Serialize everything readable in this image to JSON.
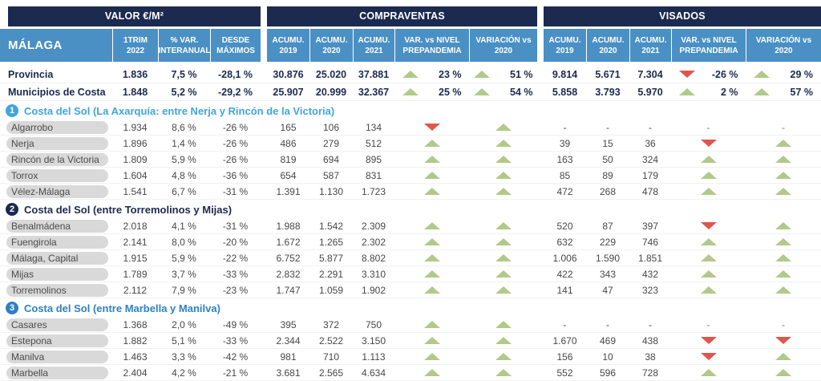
{
  "chart_data": {
    "type": "table",
    "corner_label": "MÁLAGA",
    "groups": [
      {
        "title": "VALOR €/M²",
        "columns": [
          "1TRIM 2022",
          "% VAR. INTERANUAL",
          "DESDE MÁXIMOS"
        ]
      },
      {
        "title": "COMPRAVENTAS",
        "columns": [
          "ACUMU. 2019",
          "ACUMU. 2020",
          "ACUMU. 2021",
          "VAR. vs NIVEL PREPANDEMIA",
          "VARIACIÓN vs 2020"
        ]
      },
      {
        "title": "VISADOS",
        "columns": [
          "ACUMU. 2019",
          "ACUMU. 2020",
          "ACUMU. 2021",
          "VAR. vs NIVEL PREPANDEMIA",
          "VARIACIÓN vs 2020"
        ]
      }
    ],
    "summary_rows": [
      {
        "name": "Provincia",
        "valor": [
          "1.836",
          "7,5 %",
          "-28,1 %"
        ],
        "compraventas": [
          "30.876",
          "25.020",
          "37.881"
        ],
        "cv_trends": [
          {
            "dir": "up",
            "label": "23 %"
          },
          {
            "dir": "up",
            "label": "51 %"
          }
        ],
        "visados": [
          "9.814",
          "5.671",
          "7.304"
        ],
        "vs_trends": [
          {
            "dir": "down",
            "label": "-26 %"
          },
          {
            "dir": "up",
            "label": "29 %"
          }
        ]
      },
      {
        "name": "Municipios de Costa",
        "valor": [
          "1.848",
          "5,2 %",
          "-29,2 %"
        ],
        "compraventas": [
          "25.907",
          "20.999",
          "32.367"
        ],
        "cv_trends": [
          {
            "dir": "up",
            "label": "25 %"
          },
          {
            "dir": "up",
            "label": "54 %"
          }
        ],
        "visados": [
          "5.858",
          "3.793",
          "5.970"
        ],
        "vs_trends": [
          {
            "dir": "up",
            "label": "2 %"
          },
          {
            "dir": "up",
            "label": "57 %"
          }
        ]
      }
    ],
    "sections": [
      {
        "number": "1",
        "title": "Costa del Sol  (La Axarquía: entre Nerja y Rincón de la Victoria)",
        "color": "#3fa5de",
        "rows": [
          {
            "name": "Algarrobo",
            "valor": [
              "1.934",
              "8,6 %",
              "-26 %"
            ],
            "compraventas": [
              "165",
              "106",
              "134"
            ],
            "cv_trends": [
              {
                "dir": "down"
              },
              {
                "dir": "up"
              }
            ],
            "visados": [
              "-",
              "-",
              "-"
            ],
            "vs_trends": [
              {
                "dir": "dash"
              },
              {
                "dir": "dash"
              }
            ]
          },
          {
            "name": "Nerja",
            "valor": [
              "1.896",
              "1,4 %",
              "-26 %"
            ],
            "compraventas": [
              "486",
              "279",
              "512"
            ],
            "cv_trends": [
              {
                "dir": "up"
              },
              {
                "dir": "up"
              }
            ],
            "visados": [
              "39",
              "15",
              "36"
            ],
            "vs_trends": [
              {
                "dir": "down"
              },
              {
                "dir": "up"
              }
            ]
          },
          {
            "name": "Rincón de la Victoria",
            "valor": [
              "1.809",
              "5,9 %",
              "-26 %"
            ],
            "compraventas": [
              "819",
              "694",
              "895"
            ],
            "cv_trends": [
              {
                "dir": "up"
              },
              {
                "dir": "up"
              }
            ],
            "visados": [
              "163",
              "50",
              "324"
            ],
            "vs_trends": [
              {
                "dir": "up"
              },
              {
                "dir": "up"
              }
            ]
          },
          {
            "name": "Torrox",
            "valor": [
              "1.604",
              "4,8 %",
              "-36 %"
            ],
            "compraventas": [
              "654",
              "587",
              "831"
            ],
            "cv_trends": [
              {
                "dir": "up"
              },
              {
                "dir": "up"
              }
            ],
            "visados": [
              "85",
              "89",
              "179"
            ],
            "vs_trends": [
              {
                "dir": "up"
              },
              {
                "dir": "up"
              }
            ]
          },
          {
            "name": "Vélez-Málaga",
            "valor": [
              "1.541",
              "6,7 %",
              "-31 %"
            ],
            "compraventas": [
              "1.391",
              "1.130",
              "1.723"
            ],
            "cv_trends": [
              {
                "dir": "up"
              },
              {
                "dir": "up"
              }
            ],
            "visados": [
              "472",
              "268",
              "478"
            ],
            "vs_trends": [
              {
                "dir": "up"
              },
              {
                "dir": "up"
              }
            ]
          }
        ]
      },
      {
        "number": "2",
        "title": "Costa del Sol (entre Torremolinos y Mijas)",
        "color": "#1b2a4e",
        "rows": [
          {
            "name": "Benalmádena",
            "valor": [
              "2.018",
              "4,1 %",
              "-31 %"
            ],
            "compraventas": [
              "1.988",
              "1.542",
              "2.309"
            ],
            "cv_trends": [
              {
                "dir": "up"
              },
              {
                "dir": "up"
              }
            ],
            "visados": [
              "520",
              "87",
              "397"
            ],
            "vs_trends": [
              {
                "dir": "down"
              },
              {
                "dir": "up"
              }
            ]
          },
          {
            "name": "Fuengirola",
            "valor": [
              "2.141",
              "8,0 %",
              "-20 %"
            ],
            "compraventas": [
              "1.672",
              "1.265",
              "2.302"
            ],
            "cv_trends": [
              {
                "dir": "up"
              },
              {
                "dir": "up"
              }
            ],
            "visados": [
              "632",
              "229",
              "746"
            ],
            "vs_trends": [
              {
                "dir": "up"
              },
              {
                "dir": "up"
              }
            ]
          },
          {
            "name": "Málaga, Capital",
            "valor": [
              "1.915",
              "5,9 %",
              "-22 %"
            ],
            "compraventas": [
              "6.752",
              "5.877",
              "8.802"
            ],
            "cv_trends": [
              {
                "dir": "up"
              },
              {
                "dir": "up"
              }
            ],
            "visados": [
              "1.006",
              "1.590",
              "1.851"
            ],
            "vs_trends": [
              {
                "dir": "up"
              },
              {
                "dir": "up"
              }
            ]
          },
          {
            "name": "Mijas",
            "valor": [
              "1.789",
              "3,7 %",
              "-33 %"
            ],
            "compraventas": [
              "2.832",
              "2.291",
              "3.310"
            ],
            "cv_trends": [
              {
                "dir": "up"
              },
              {
                "dir": "up"
              }
            ],
            "visados": [
              "422",
              "343",
              "432"
            ],
            "vs_trends": [
              {
                "dir": "up"
              },
              {
                "dir": "up"
              }
            ]
          },
          {
            "name": "Torremolinos",
            "valor": [
              "2.112",
              "7,9 %",
              "-23 %"
            ],
            "compraventas": [
              "1.747",
              "1.059",
              "1.902"
            ],
            "cv_trends": [
              {
                "dir": "up"
              },
              {
                "dir": "up"
              }
            ],
            "visados": [
              "141",
              "47",
              "323"
            ],
            "vs_trends": [
              {
                "dir": "up"
              },
              {
                "dir": "up"
              }
            ]
          }
        ]
      },
      {
        "number": "3",
        "title": "Costa del Sol (entre Marbella y Manilva)",
        "color": "#2e80c4",
        "rows": [
          {
            "name": "Casares",
            "valor": [
              "1.368",
              "2,0 %",
              "-49 %"
            ],
            "compraventas": [
              "395",
              "372",
              "750"
            ],
            "cv_trends": [
              {
                "dir": "up"
              },
              {
                "dir": "up"
              }
            ],
            "visados": [
              "-",
              "-",
              "-"
            ],
            "vs_trends": [
              {
                "dir": "dash"
              },
              {
                "dir": "dash"
              }
            ]
          },
          {
            "name": "Estepona",
            "valor": [
              "1.882",
              "5,1 %",
              "-33 %"
            ],
            "compraventas": [
              "2.344",
              "2.522",
              "3.150"
            ],
            "cv_trends": [
              {
                "dir": "up"
              },
              {
                "dir": "up"
              }
            ],
            "visados": [
              "1.670",
              "469",
              "438"
            ],
            "vs_trends": [
              {
                "dir": "down"
              },
              {
                "dir": "down"
              }
            ]
          },
          {
            "name": "Manilva",
            "valor": [
              "1.463",
              "3,3 %",
              "-42 %"
            ],
            "compraventas": [
              "981",
              "710",
              "1.113"
            ],
            "cv_trends": [
              {
                "dir": "up"
              },
              {
                "dir": "up"
              }
            ],
            "visados": [
              "156",
              "10",
              "38"
            ],
            "vs_trends": [
              {
                "dir": "down"
              },
              {
                "dir": "up"
              }
            ]
          },
          {
            "name": "Marbella",
            "valor": [
              "2.404",
              "4,2 %",
              "-21 %"
            ],
            "compraventas": [
              "3.681",
              "2.565",
              "4.634"
            ],
            "cv_trends": [
              {
                "dir": "up"
              },
              {
                "dir": "up"
              }
            ],
            "visados": [
              "552",
              "596",
              "728"
            ],
            "vs_trends": [
              {
                "dir": "up"
              },
              {
                "dir": "up"
              }
            ]
          }
        ]
      }
    ],
    "colors": {
      "navy": "#1b2a4e",
      "header_blue": "#4a90c4",
      "green_up": "#b2c98a",
      "red_down": "#e0564a",
      "pill_gray": "#d9d9d9",
      "section1_blue": "#3fa5de",
      "section2_navy": "#1b2a4e",
      "section3_blue": "#2e80c4"
    }
  }
}
